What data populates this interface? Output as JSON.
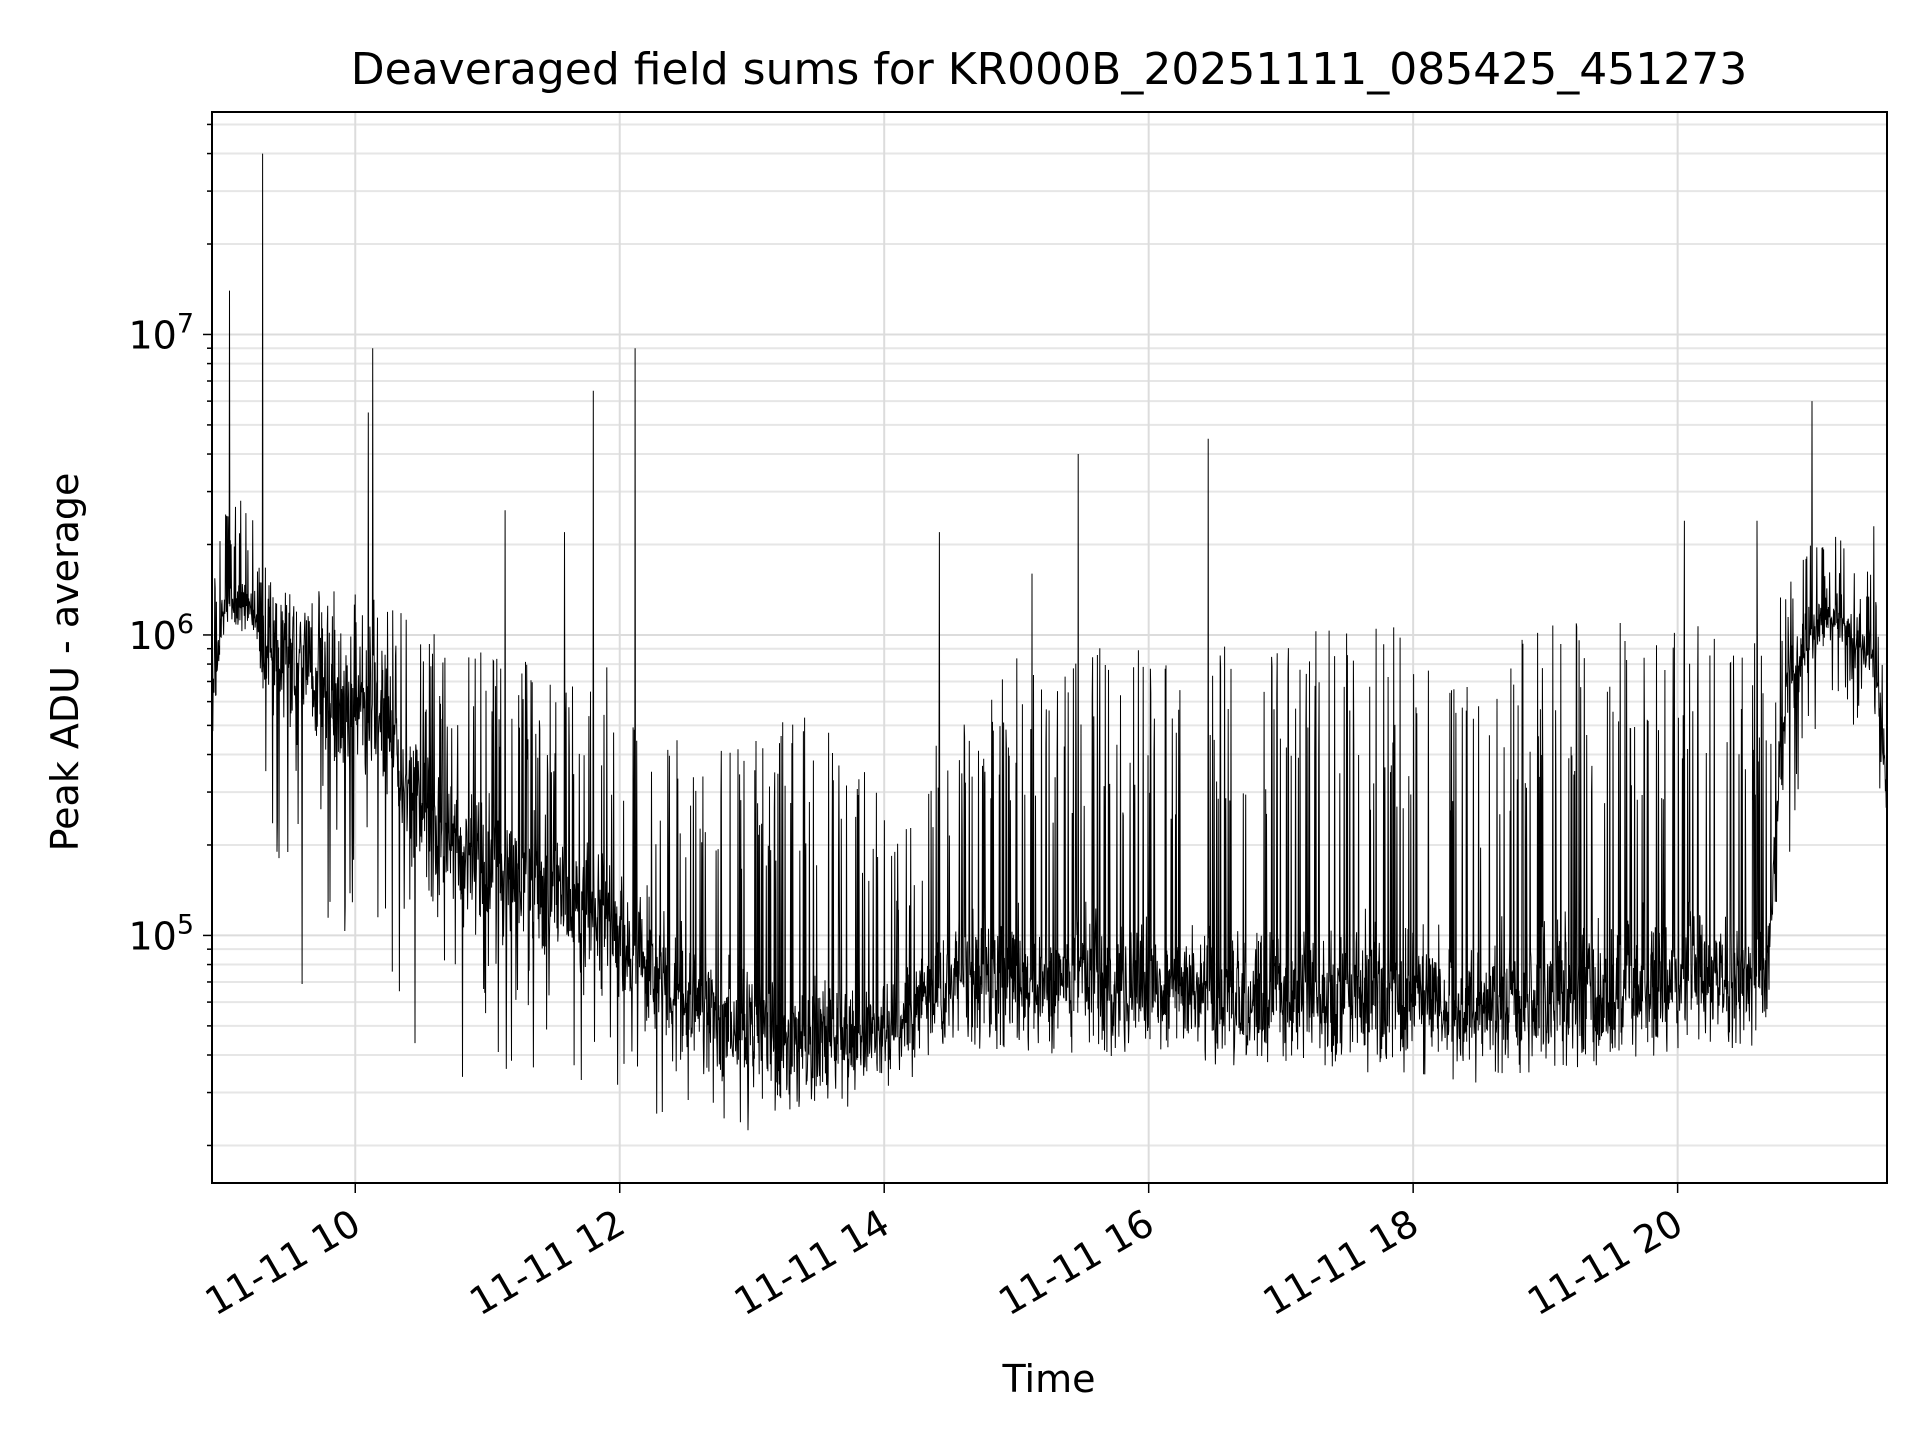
{
  "chart_data": {
    "type": "line",
    "title": "Deaveraged field sums for KR000B_20251111_085425_451273",
    "xlabel": "Time",
    "ylabel": "Peak ADU - average",
    "x_range": [
      "2025-11-11T08:55",
      "2025-11-11T21:35"
    ],
    "y_scale": "log",
    "ylim": [
      15000,
      55000000
    ],
    "grid": true,
    "line_color": "#000000",
    "x_ticks": [
      {
        "time": "2025-11-11T10:00",
        "label": "11-11 10"
      },
      {
        "time": "2025-11-11T12:00",
        "label": "11-11 12"
      },
      {
        "time": "2025-11-11T14:00",
        "label": "11-11 14"
      },
      {
        "time": "2025-11-11T16:00",
        "label": "11-11 16"
      },
      {
        "time": "2025-11-11T18:00",
        "label": "11-11 18"
      },
      {
        "time": "2025-11-11T20:00",
        "label": "11-11 20"
      }
    ],
    "y_ticks": [
      {
        "value": 100000,
        "base": "10",
        "exp": "5"
      },
      {
        "value": 1000000,
        "base": "10",
        "exp": "6"
      },
      {
        "value": 10000000,
        "base": "10",
        "exp": "7"
      }
    ],
    "series": [
      {
        "x": [
          "2025-11-11T08:55",
          "2025-11-11T09:00",
          "2025-11-11T09:10",
          "2025-11-11T09:20",
          "2025-11-11T09:30",
          "2025-11-11T09:40",
          "2025-11-11T09:50",
          "2025-11-11T10:00",
          "2025-11-11T10:10",
          "2025-11-11T10:20",
          "2025-11-11T10:30",
          "2025-11-11T10:40",
          "2025-11-11T10:50",
          "2025-11-11T11:00",
          "2025-11-11T11:10",
          "2025-11-11T11:20",
          "2025-11-11T11:30",
          "2025-11-11T11:40",
          "2025-11-11T11:50",
          "2025-11-11T12:00",
          "2025-11-11T12:10",
          "2025-11-11T12:20",
          "2025-11-11T12:30",
          "2025-11-11T12:40",
          "2025-11-11T12:50",
          "2025-11-11T13:00",
          "2025-11-11T13:10",
          "2025-11-11T13:20",
          "2025-11-11T13:30",
          "2025-11-11T13:40",
          "2025-11-11T13:50",
          "2025-11-11T14:00",
          "2025-11-11T14:10",
          "2025-11-11T14:20",
          "2025-11-11T14:30",
          "2025-11-11T14:40",
          "2025-11-11T14:50",
          "2025-11-11T15:00",
          "2025-11-11T15:10",
          "2025-11-11T15:20",
          "2025-11-11T15:30",
          "2025-11-11T15:40",
          "2025-11-11T15:50",
          "2025-11-11T16:00",
          "2025-11-11T16:10",
          "2025-11-11T16:20",
          "2025-11-11T16:30",
          "2025-11-11T16:40",
          "2025-11-11T16:50",
          "2025-11-11T17:00",
          "2025-11-11T17:10",
          "2025-11-11T17:20",
          "2025-11-11T17:30",
          "2025-11-11T17:40",
          "2025-11-11T17:50",
          "2025-11-11T18:00",
          "2025-11-11T18:10",
          "2025-11-11T18:20",
          "2025-11-11T18:30",
          "2025-11-11T18:40",
          "2025-11-11T18:50",
          "2025-11-11T19:00",
          "2025-11-11T19:10",
          "2025-11-11T19:20",
          "2025-11-11T19:30",
          "2025-11-11T19:40",
          "2025-11-11T19:50",
          "2025-11-11T20:00",
          "2025-11-11T20:10",
          "2025-11-11T20:20",
          "2025-11-11T20:30",
          "2025-11-11T20:40",
          "2025-11-11T20:50",
          "2025-11-11T21:00",
          "2025-11-11T21:10",
          "2025-11-11T21:20",
          "2025-11-11T21:30",
          "2025-11-11T21:35"
        ],
        "base": [
          600000,
          1200000,
          1300000,
          900000,
          800000,
          700000,
          650000,
          600000,
          550000,
          400000,
          250000,
          200000,
          180000,
          170000,
          160000,
          150000,
          140000,
          130000,
          120000,
          100000,
          85000,
          70000,
          60000,
          55000,
          50000,
          48000,
          46000,
          45000,
          45000,
          46000,
          48000,
          50000,
          55000,
          65000,
          70000,
          72000,
          72000,
          70000,
          68000,
          70000,
          72000,
          70000,
          68000,
          70000,
          68000,
          66000,
          65000,
          64000,
          63000,
          62000,
          62000,
          63000,
          62000,
          61000,
          60000,
          60000,
          59000,
          58000,
          58000,
          59000,
          60000,
          61000,
          62000,
          63000,
          64000,
          66000,
          70000,
          75000,
          72000,
          70000,
          68000,
          68000,
          700000,
          1000000,
          1200000,
          1000000,
          800000,
          300000
        ],
        "low": [
          300000,
          900000,
          700000,
          150000,
          60000,
          45000,
          50000,
          60000,
          45000,
          40000,
          35000,
          32000,
          30000,
          35000,
          32000,
          30000,
          30000,
          32000,
          30000,
          28000,
          26000,
          24000,
          23000,
          22000,
          22000,
          22000,
          23000,
          24000,
          25000,
          26000,
          28000,
          30000,
          32000,
          38000,
          42000,
          42000,
          42000,
          40000,
          40000,
          40000,
          41000,
          40000,
          39000,
          40000,
          39000,
          38000,
          37000,
          37000,
          36000,
          36000,
          36000,
          37000,
          36000,
          35000,
          35000,
          35000,
          34000,
          33000,
          30000,
          34000,
          35000,
          35000,
          36000,
          37000,
          37000,
          38000,
          40000,
          42000,
          42000,
          42000,
          42000,
          42000,
          150000,
          400000,
          600000,
          500000,
          400000,
          180000
        ],
        "high": [
          1500000,
          2500000,
          3000000,
          1600000,
          1500000,
          1400000,
          1400000,
          1400000,
          1300000,
          1300000,
          1200000,
          1100000,
          1000000,
          900000,
          900000,
          800000,
          700000,
          900000,
          800000,
          800000,
          600000,
          500000,
          500000,
          500000,
          500000,
          450000,
          500000,
          550000,
          600000,
          500000,
          400000,
          300000,
          250000,
          400000,
          600000,
          700000,
          800000,
          900000,
          900000,
          700000,
          1000000,
          900000,
          800000,
          1100000,
          800000,
          700000,
          1200000,
          1000000,
          900000,
          1100000,
          1100000,
          1100000,
          1100000,
          1100000,
          1100000,
          1000000,
          1000000,
          900000,
          600000,
          1000000,
          1100000,
          1100000,
          1100000,
          1100000,
          1100000,
          1100000,
          1100000,
          1100000,
          1100000,
          1000000,
          1000000,
          1000000,
          1600000,
          2000000,
          2200000,
          2000000,
          1500000,
          800000
        ],
        "spikes": [
          {
            "time": "2025-11-11T09:03",
            "value": 14000000
          },
          {
            "time": "2025-11-11T09:18",
            "value": 40000000
          },
          {
            "time": "2025-11-11T10:08",
            "value": 9000000
          },
          {
            "time": "2025-11-11T10:06",
            "value": 5500000
          },
          {
            "time": "2025-11-11T11:48",
            "value": 6500000
          },
          {
            "time": "2025-11-11T12:07",
            "value": 9000000
          },
          {
            "time": "2025-11-11T11:08",
            "value": 2600000
          },
          {
            "time": "2025-11-11T11:35",
            "value": 2200000
          },
          {
            "time": "2025-11-11T14:25",
            "value": 2200000
          },
          {
            "time": "2025-11-11T15:07",
            "value": 1600000
          },
          {
            "time": "2025-11-11T15:28",
            "value": 4000000
          },
          {
            "time": "2025-11-11T16:27",
            "value": 4500000
          },
          {
            "time": "2025-11-11T20:03",
            "value": 2400000
          },
          {
            "time": "2025-11-11T20:36",
            "value": 2400000
          },
          {
            "time": "2025-11-11T21:01",
            "value": 6000000
          },
          {
            "time": "2025-11-11T21:29",
            "value": 2300000
          }
        ]
      }
    ]
  }
}
